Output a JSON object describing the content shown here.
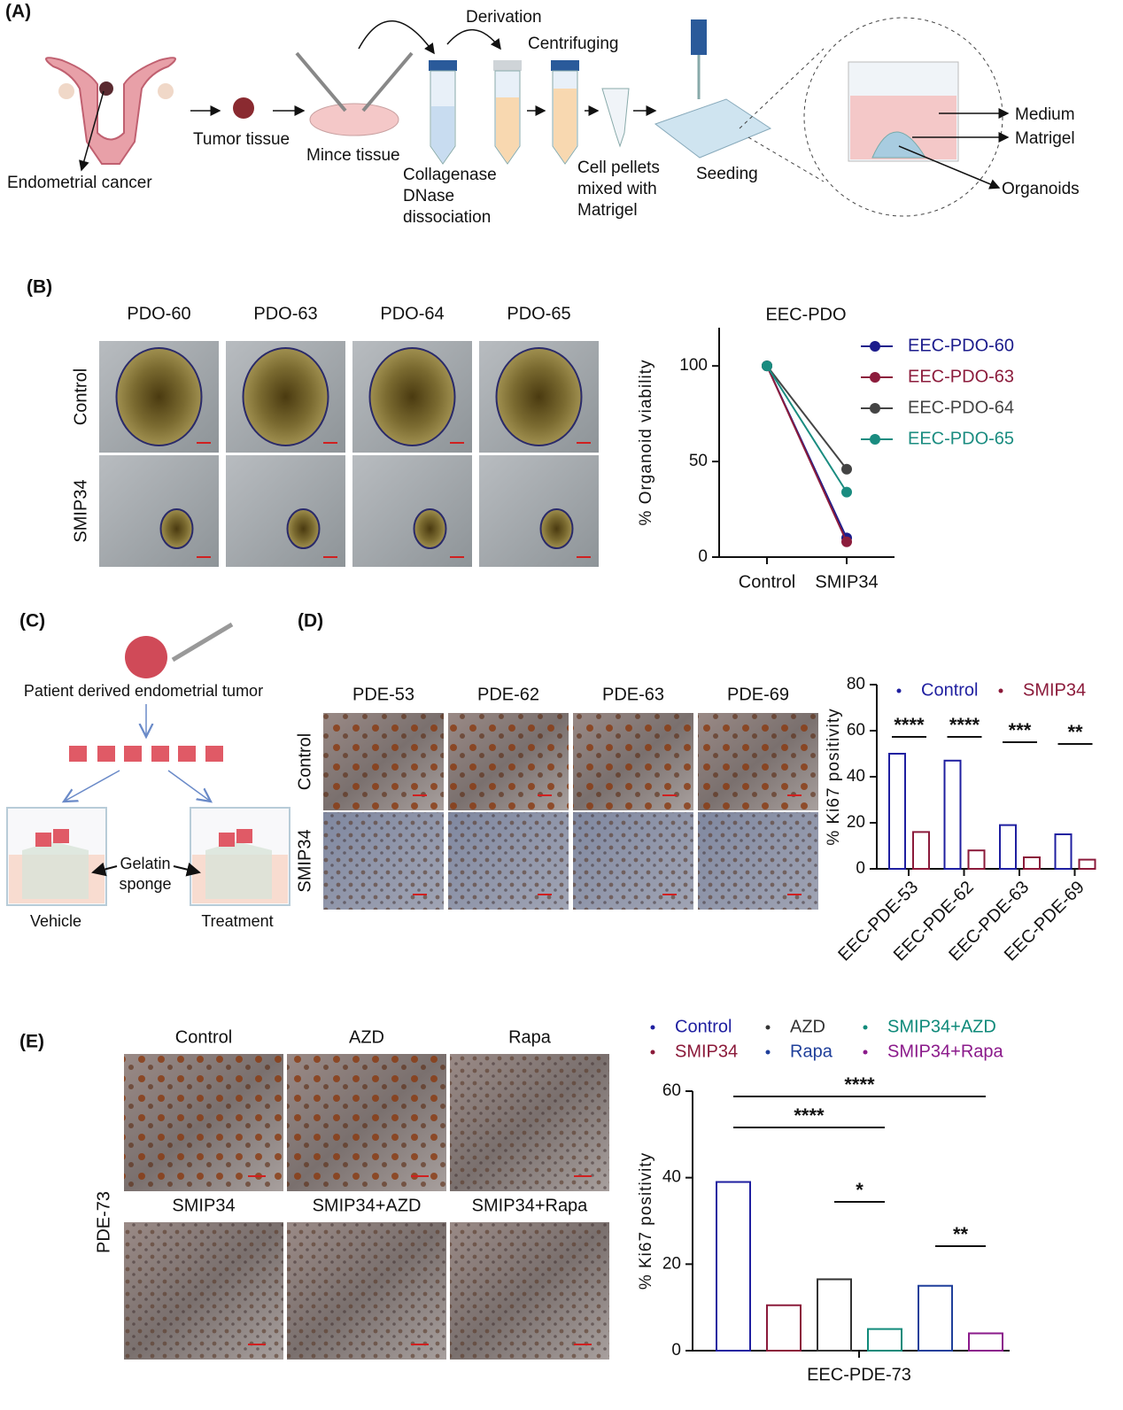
{
  "figure": {
    "A": {
      "label": "(A)",
      "endometrial_cancer": "Endometrial cancer",
      "tumor_tissue": "Tumor tissue",
      "mince_tissue": "Mince tissue",
      "derivation": "Derivation",
      "centrifuging": "Centrifuging",
      "dissociation": [
        "Collagenase",
        "DNase",
        "dissociation"
      ],
      "cell_pellets": [
        "Cell pellets",
        "mixed with",
        "Matrigel"
      ],
      "seeding": "Seeding",
      "medium": "Medium",
      "matrigel": "Matrigel",
      "organoids": "Organoids"
    },
    "B": {
      "label": "(B)",
      "columns": [
        "PDO-60",
        "PDO-63",
        "PDO-64",
        "PDO-65"
      ],
      "rows": [
        "Control",
        "SMIP34"
      ]
    },
    "C": {
      "label": "(C)",
      "tumor": "Patient derived endometrial tumor",
      "sponge": [
        "Gelatin",
        "sponge"
      ],
      "vehicle": "Vehicle",
      "treatment": "Treatment"
    },
    "D": {
      "label": "(D)",
      "columns": [
        "PDE-53",
        "PDE-62",
        "PDE-63",
        "PDE-69"
      ],
      "rows": [
        "Control",
        "SMIP34"
      ]
    },
    "E": {
      "label": "(E)",
      "images": [
        "Control",
        "AZD",
        "Rapa",
        "SMIP34",
        "SMIP34+AZD",
        "SMIP34+Rapa"
      ],
      "row_label": "PDE-73"
    }
  },
  "chart_data": [
    {
      "type": "line",
      "title": "EEC-PDO",
      "y_label": "% Organoid viability",
      "categories": [
        "Control",
        "SMIP34"
      ],
      "series": [
        {
          "name": "EEC-PDO-60",
          "color": "#1c1c8c",
          "values": [
            100,
            10
          ]
        },
        {
          "name": "EEC-PDO-63",
          "color": "#8c1c3c",
          "values": [
            100,
            8
          ]
        },
        {
          "name": "EEC-PDO-64",
          "color": "#444444",
          "values": [
            100,
            46
          ]
        },
        {
          "name": "EEC-PDO-65",
          "color": "#1a8c80",
          "values": [
            100,
            34
          ]
        }
      ],
      "ylim": [
        0,
        120
      ],
      "yticks": [
        0,
        50,
        100
      ],
      "legend": "upper right"
    },
    {
      "type": "bar",
      "y_label": "% Ki67 positivity",
      "categories": [
        "EEC-PDE-53",
        "EEC-PDE-62",
        "EEC-PDE-63",
        "EEC-PDE-69"
      ],
      "series": [
        {
          "name": "Control",
          "color": "#1f1fa0",
          "values": [
            50,
            47,
            19,
            15
          ]
        },
        {
          "name": "SMIP34",
          "color": "#8b1a3a",
          "values": [
            16,
            8,
            5,
            4
          ]
        }
      ],
      "ylim": [
        0,
        80
      ],
      "yticks": [
        0,
        20,
        40,
        60,
        80
      ],
      "annotations": [
        "****",
        "****",
        "***",
        "**"
      ],
      "legend": "top"
    },
    {
      "type": "bar",
      "y_label": "% Ki67  positivity",
      "categories": [
        "EEC-PDE-73"
      ],
      "series": [
        {
          "name": "Control",
          "color": "#1f1fa0",
          "values": [
            39
          ]
        },
        {
          "name": "SMIP34",
          "color": "#8b1a3a",
          "values": [
            10.5
          ]
        },
        {
          "name": "AZD",
          "color": "#333333",
          "values": [
            16.5
          ]
        },
        {
          "name": "SMIP34+AZD",
          "color": "#0f8a7a",
          "values": [
            5
          ]
        },
        {
          "name": "Rapa",
          "color": "#1f3f9a",
          "values": [
            15
          ]
        },
        {
          "name": "SMIP34+Rapa",
          "color": "#8b1a8b",
          "values": [
            4
          ]
        }
      ],
      "ylim": [
        0,
        60
      ],
      "yticks": [
        0,
        20,
        40,
        60
      ],
      "annotations": [
        "****",
        "****",
        "*",
        "**"
      ],
      "legend": "top"
    }
  ]
}
